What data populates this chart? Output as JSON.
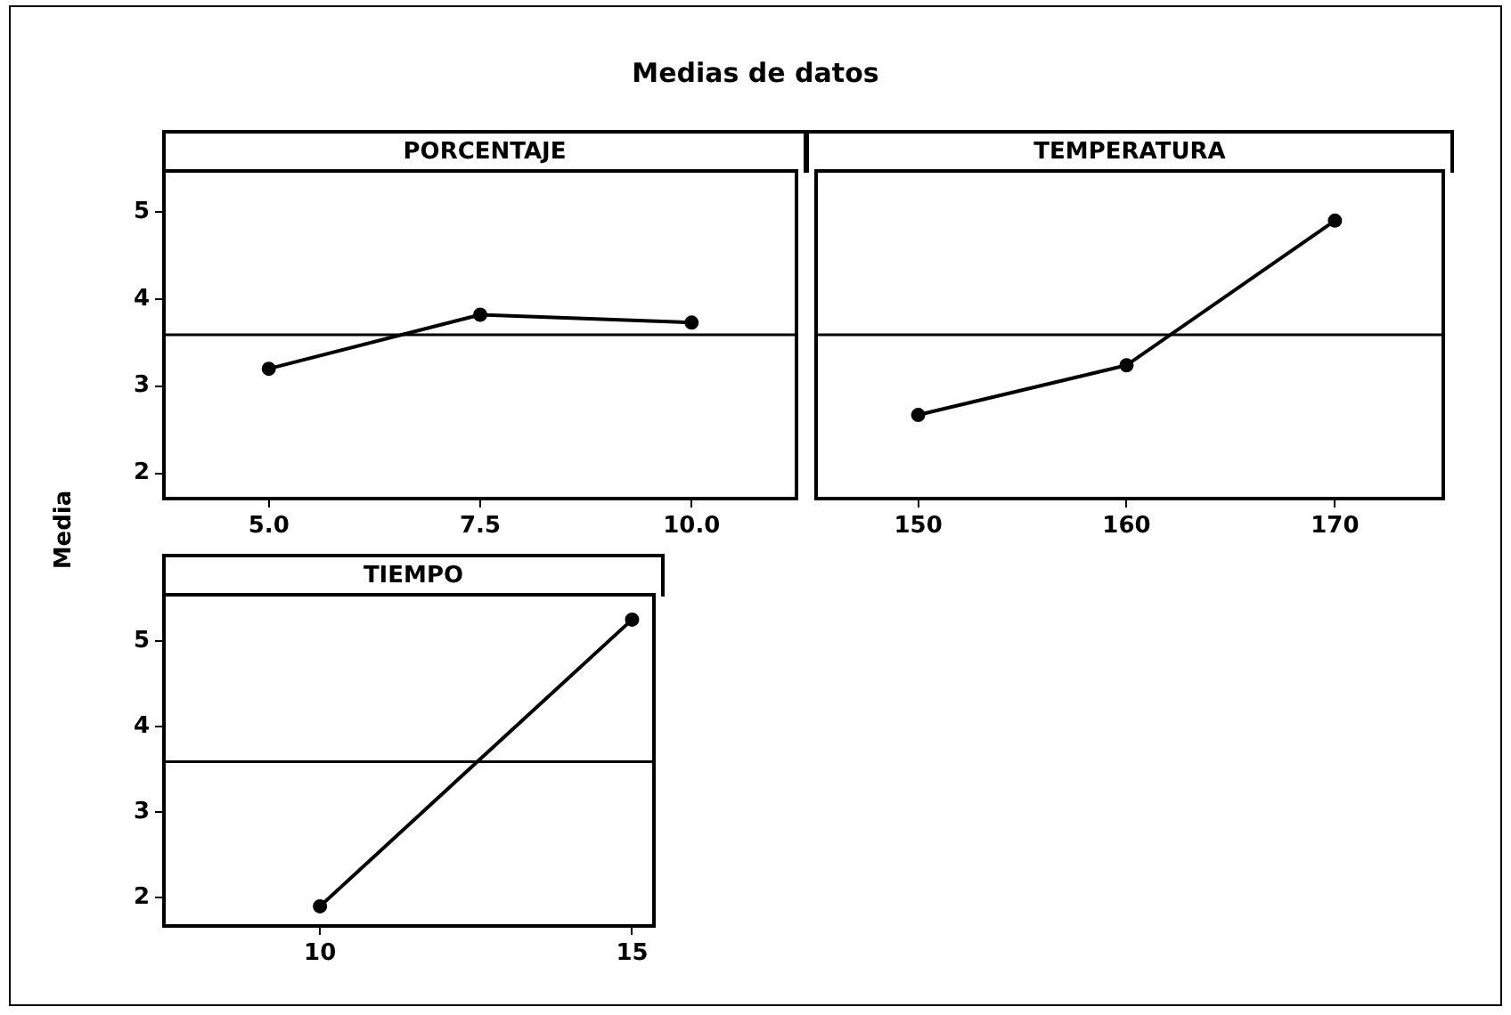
{
  "chart_data": [
    {
      "type": "line",
      "title": "Medias de datos",
      "subtitle": "PORCENTAJE",
      "ylabel": "Media",
      "x": [
        5.0,
        7.5,
        10.0
      ],
      "series": [
        {
          "color": "#000000",
          "values": [
            3.2,
            3.82,
            3.73
          ]
        }
      ],
      "xlim": [
        3.76,
        11.24
      ],
      "xticks": [
        {
          "value": 5,
          "label": "5.0"
        },
        7.5,
        {
          "value": 10,
          "label": "10.0"
        }
      ],
      "ylim": [
        1.71,
        5.47
      ],
      "yticks": [
        2,
        3,
        4,
        5
      ],
      "grid": false,
      "legend": false,
      "marker": "circle",
      "ref_lines": [
        {
          "axis": "y",
          "value": 3.59,
          "color": "#000000"
        }
      ]
    },
    {
      "type": "line",
      "subtitle": "TEMPERATURA",
      "x": [
        150,
        160,
        170
      ],
      "series": [
        {
          "color": "#000000",
          "values": [
            2.67,
            3.24,
            4.9
          ]
        }
      ],
      "xlim": [
        145.1,
        175.2
      ],
      "xticks": [
        150,
        160,
        170
      ],
      "ylim": [
        1.71,
        5.47
      ],
      "yticks": [
        2,
        3,
        4,
        5
      ],
      "tick_labels": "x",
      "grid": false,
      "legend": false,
      "marker": "circle",
      "ref_lines": [
        {
          "axis": "y",
          "value": 3.59,
          "color": "#000000"
        }
      ]
    },
    {
      "type": "line",
      "subtitle": "TIEMPO",
      "x": [
        10,
        15
      ],
      "series": [
        {
          "color": "#000000",
          "values": [
            1.9,
            5.25
          ]
        }
      ],
      "xlim": [
        7.5,
        15.35
      ],
      "xticks": [
        10,
        15
      ],
      "ylim": [
        1.67,
        5.54
      ],
      "yticks": [
        2,
        3,
        4,
        5
      ],
      "grid": false,
      "legend": false,
      "marker": "circle",
      "ref_lines": [
        {
          "axis": "y",
          "value": 3.59,
          "color": "#000000"
        }
      ]
    }
  ]
}
